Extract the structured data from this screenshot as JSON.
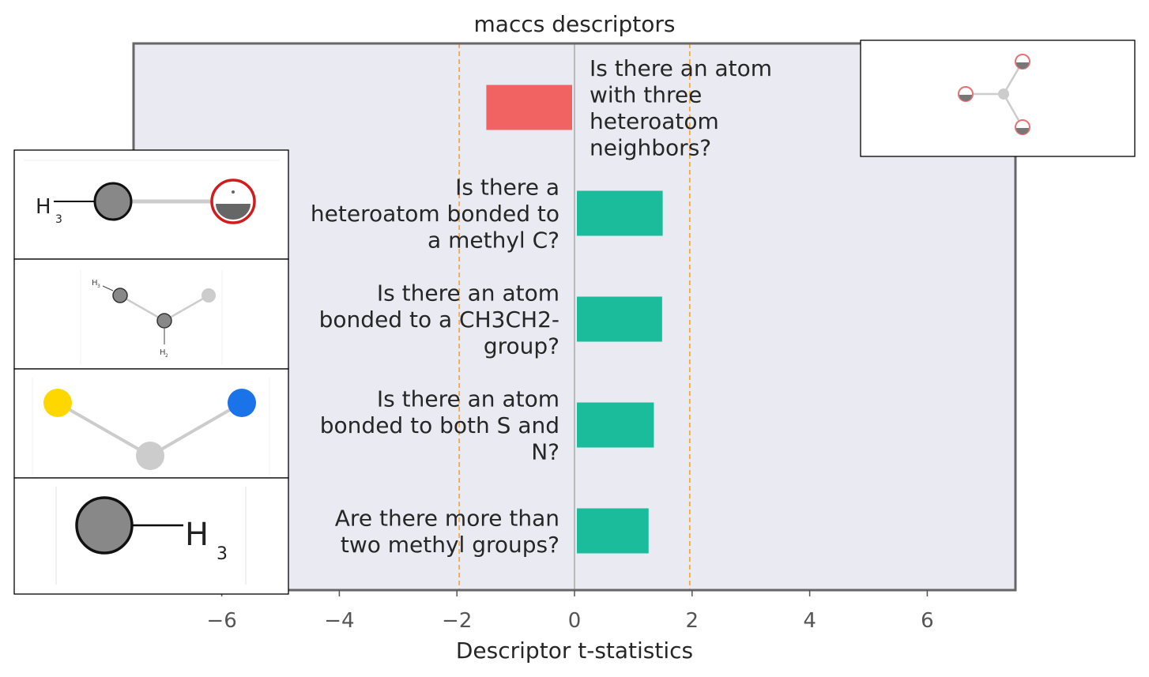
{
  "colors": {
    "background": "#eaeaf2",
    "frame": "#666666",
    "positive_bar": "#1abc9c",
    "negative_bar": "#f16363",
    "threshold_line": "#f5a742",
    "zero_line": "#999999"
  },
  "chart_data": {
    "type": "bar",
    "orientation": "horizontal",
    "title": "maccs descriptors",
    "xlabel": "Descriptor t-statistics",
    "ylabel": "",
    "xlim": [
      -7.5,
      7.5
    ],
    "xticks": [
      -6,
      -4,
      -2,
      0,
      2,
      4,
      6
    ],
    "xtick_labels": [
      "−6",
      "−4",
      "−2",
      "0",
      "2",
      "4",
      "6"
    ],
    "threshold_lines": [
      -1.96,
      1.96
    ],
    "grid": false,
    "bars": [
      {
        "label": [
          "Is there an atom",
          "with three",
          "heteroatom",
          "neighbors?"
        ],
        "value": -1.5
      },
      {
        "label": [
          "Is there a",
          "heteroatom bonded to",
          "a methyl C?"
        ],
        "value": 1.5
      },
      {
        "label": [
          "Is there an atom",
          "bonded to a CH3CH2-",
          "group?"
        ],
        "value": 1.49
      },
      {
        "label": [
          "Is there an atom",
          "bonded to both S and",
          "N?"
        ],
        "value": 1.35
      },
      {
        "label": [
          "Are there more than",
          "two methyl groups?"
        ],
        "value": 1.26
      }
    ],
    "insets": [
      {
        "fragment": "three heteroatom neighbors",
        "texts": []
      },
      {
        "fragment": "H3C-heteroatom",
        "texts": [
          "H",
          "3"
        ]
      },
      {
        "fragment": "CH3CH2-X",
        "texts": [
          "H",
          "3",
          "H",
          "2"
        ]
      },
      {
        "fragment": "S-C-N",
        "texts": []
      },
      {
        "fragment": "CH3",
        "texts": [
          "H",
          "3"
        ]
      }
    ]
  }
}
